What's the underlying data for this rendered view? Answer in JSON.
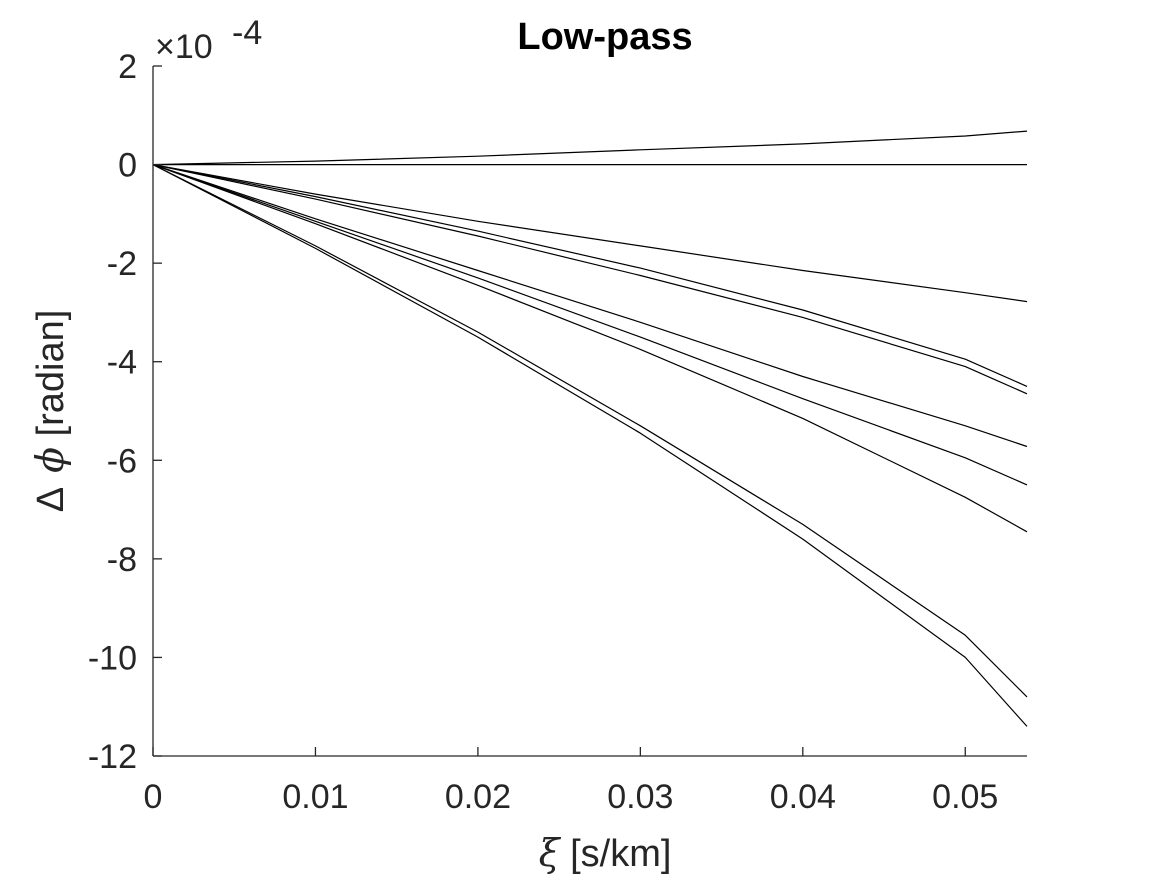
{
  "chart_data": {
    "type": "line",
    "title": "Low-pass",
    "xlabel": {
      "symbol": "ξ",
      "text": " [s/km]"
    },
    "ylabel": {
      "symbol_delta": "Δ",
      "symbol_phi": "ϕ",
      "text": " [radian]"
    },
    "y_exponent": {
      "base": "×10",
      "power": "-4"
    },
    "xlim": [
      0,
      0.0538
    ],
    "ylim": [
      -12,
      2
    ],
    "y_scale_note": "values in units of 1e-4",
    "x_ticks": [
      0,
      0.01,
      0.02,
      0.03,
      0.04,
      0.05
    ],
    "x_tick_labels": [
      "0",
      "0.01",
      "0.02",
      "0.03",
      "0.04",
      "0.05"
    ],
    "y_ticks": [
      2,
      0,
      -2,
      -4,
      -6,
      -8,
      -10,
      -12
    ],
    "y_tick_labels": [
      "2",
      "0",
      "-2",
      "-4",
      "-6",
      "-8",
      "-10",
      "-12"
    ],
    "grid": false,
    "line_color": "#000000",
    "axis_color": "#262626",
    "x": [
      0,
      0.01,
      0.02,
      0.03,
      0.04,
      0.05,
      0.0538
    ],
    "series": [
      {
        "values": [
          0,
          0.07,
          0.17,
          0.3,
          0.42,
          0.58,
          0.68
        ]
      },
      {
        "values": [
          0,
          0,
          0,
          0,
          0,
          0,
          0
        ]
      },
      {
        "values": [
          0,
          -0.6,
          -1.15,
          -1.65,
          -2.15,
          -2.6,
          -2.78
        ]
      },
      {
        "values": [
          0,
          -0.65,
          -1.35,
          -2.1,
          -2.95,
          -3.95,
          -4.5
        ]
      },
      {
        "values": [
          0,
          -0.7,
          -1.45,
          -2.25,
          -3.1,
          -4.1,
          -4.65
        ]
      },
      {
        "values": [
          0,
          -1.1,
          -2.15,
          -3.2,
          -4.3,
          -5.3,
          -5.72
        ]
      },
      {
        "values": [
          0,
          -1.15,
          -2.3,
          -3.5,
          -4.75,
          -5.95,
          -6.5
        ]
      },
      {
        "values": [
          0,
          -1.2,
          -2.45,
          -3.75,
          -5.15,
          -6.75,
          -7.45
        ]
      },
      {
        "values": [
          0,
          -1.65,
          -3.4,
          -5.3,
          -7.3,
          -9.55,
          -10.8
        ]
      },
      {
        "values": [
          0,
          -1.7,
          -3.5,
          -5.45,
          -7.6,
          -10.0,
          -11.4
        ]
      }
    ]
  }
}
